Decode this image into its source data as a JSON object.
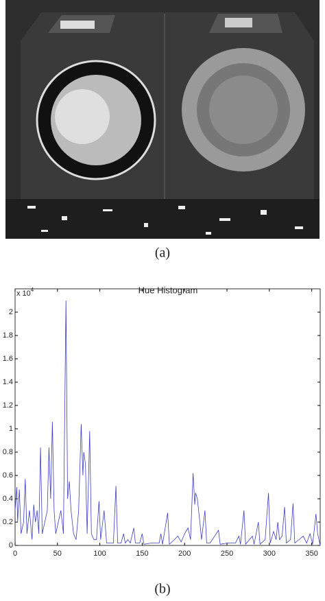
{
  "figure": {
    "captions": [
      "(a)",
      "(b)"
    ]
  },
  "chart_data": {
    "type": "line",
    "title": "Hue Histogram",
    "y_multiplier": "x 10",
    "y_multiplier_exponent": "4",
    "x": [
      0,
      2,
      3,
      5,
      7,
      10,
      12,
      14,
      17,
      20,
      22,
      24,
      26,
      28,
      30,
      32,
      35,
      38,
      40,
      42,
      44,
      46,
      48,
      51,
      54,
      57,
      60,
      62,
      64,
      66,
      69,
      72,
      75,
      78,
      80,
      81,
      83,
      85,
      88,
      90,
      93,
      96,
      99,
      101,
      105,
      108,
      112,
      116,
      119,
      121,
      125,
      128,
      130,
      133,
      136,
      140,
      142,
      147,
      150,
      152,
      160,
      170,
      172,
      174,
      180,
      182,
      188,
      192,
      196,
      200,
      204,
      207,
      210,
      212,
      213,
      215,
      218,
      220,
      224,
      226,
      230,
      240,
      242,
      250,
      260,
      264,
      266,
      270,
      272,
      280,
      282,
      287,
      289,
      295,
      299,
      301,
      305,
      308,
      310,
      312,
      315,
      318,
      320,
      325,
      328,
      330,
      335,
      340,
      344,
      348,
      351,
      354,
      355,
      357,
      360
    ],
    "series": [
      {
        "name": "hue",
        "color": "#3c3cc8",
        "values": [
          0.3,
          0.5,
          0.2,
          0.48,
          0.1,
          0.2,
          0.57,
          0.1,
          0.3,
          0.05,
          0.35,
          0.2,
          0.3,
          0.1,
          0.84,
          0.1,
          0.2,
          0.3,
          0.84,
          0.4,
          1.06,
          0.3,
          0.1,
          0.2,
          0.3,
          0.1,
          2.1,
          0.4,
          0.55,
          0.3,
          0.1,
          0.05,
          0.3,
          1.04,
          0.6,
          0.8,
          0.7,
          0.1,
          0.98,
          0.1,
          0.05,
          0.05,
          0.38,
          0.05,
          0.3,
          0.02,
          0.02,
          0.02,
          0.51,
          0.02,
          0.02,
          0.1,
          0.02,
          0.05,
          0.02,
          0.15,
          0.02,
          0.02,
          0.1,
          0.01,
          0.02,
          0.02,
          0.1,
          0.01,
          0.28,
          0.01,
          0.05,
          0.08,
          0.03,
          0.1,
          0.15,
          0.05,
          0.62,
          0.35,
          0.45,
          0.4,
          0.2,
          0.05,
          0.3,
          0.02,
          0.02,
          0.13,
          0.01,
          0.02,
          0.02,
          0.08,
          0.01,
          0.3,
          0.01,
          0.08,
          0.01,
          0.2,
          0.01,
          0.05,
          0.45,
          0.02,
          0.12,
          0.05,
          0.2,
          0.05,
          0.08,
          0.33,
          0.02,
          0.05,
          0.36,
          0.02,
          0.05,
          0.08,
          0.02,
          0.1,
          0.01,
          0.2,
          0.27,
          0.1,
          0
        ]
      }
    ],
    "xlim": [
      0,
      360
    ],
    "xticks": [
      0,
      50,
      100,
      150,
      200,
      250,
      300,
      350
    ],
    "ylim": [
      0,
      2.2
    ],
    "yticks": [
      0,
      0.2,
      0.4,
      0.6,
      0.8,
      1,
      1.2,
      1.4,
      1.6,
      1.8,
      2
    ],
    "grid": false
  }
}
